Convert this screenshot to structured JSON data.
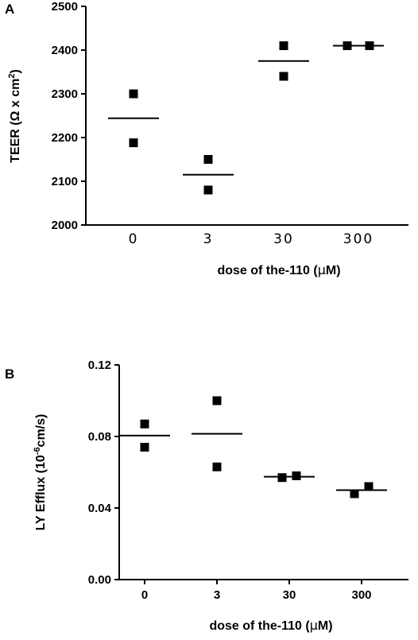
{
  "chart_data": [
    {
      "type": "scatter",
      "panel_label": "A",
      "ylabel_prefix": "TEER (",
      "ylabel_symbol": "Ω x cm",
      "ylabel_sup": "2",
      "ylabel_suffix": ")",
      "xlabel_prefix": "dose of the-110 (",
      "xlabel_symbol": "μ",
      "xlabel_suffix": "M)",
      "categories": [
        "0",
        "3",
        "30",
        "300"
      ],
      "ylim": [
        2000,
        2500
      ],
      "yticks": [
        2000,
        2100,
        2200,
        2300,
        2400,
        2500
      ],
      "ytick_labels": [
        "2000",
        "2100",
        "2200",
        "2300",
        "2400",
        "2500"
      ],
      "points": [
        {
          "category": "0",
          "values": [
            2300,
            2188
          ]
        },
        {
          "category": "3",
          "values": [
            2150,
            2080
          ]
        },
        {
          "category": "30",
          "values": [
            2410,
            2340
          ]
        },
        {
          "category": "300",
          "values": [
            2410,
            2410
          ]
        }
      ],
      "means": [
        2244,
        2115,
        2375,
        2410
      ],
      "grid": false,
      "marker": "square",
      "color": "#000000"
    },
    {
      "type": "scatter",
      "panel_label": "B",
      "ylabel_prefix": "LY Efflux (10",
      "ylabel_sup": "-6",
      "ylabel_suffix": "cm/s)",
      "xlabel_prefix": "dose of the-110 (",
      "xlabel_symbol": "μ",
      "xlabel_suffix": "M)",
      "categories": [
        "0",
        "3",
        "30",
        "300"
      ],
      "ylim": [
        0,
        0.12
      ],
      "yticks": [
        0,
        0.04,
        0.08,
        0.12
      ],
      "ytick_labels": [
        "0.00",
        "0.04",
        "0.08",
        "0.12"
      ],
      "points": [
        {
          "category": "0",
          "values": [
            0.087,
            0.074
          ]
        },
        {
          "category": "3",
          "values": [
            0.1,
            0.063
          ]
        },
        {
          "category": "30",
          "values": [
            0.057,
            0.058
          ]
        },
        {
          "category": "300",
          "values": [
            0.048,
            0.052
          ]
        }
      ],
      "means": [
        0.0805,
        0.0815,
        0.0575,
        0.05
      ],
      "grid": false,
      "marker": "square",
      "color": "#000000"
    }
  ]
}
